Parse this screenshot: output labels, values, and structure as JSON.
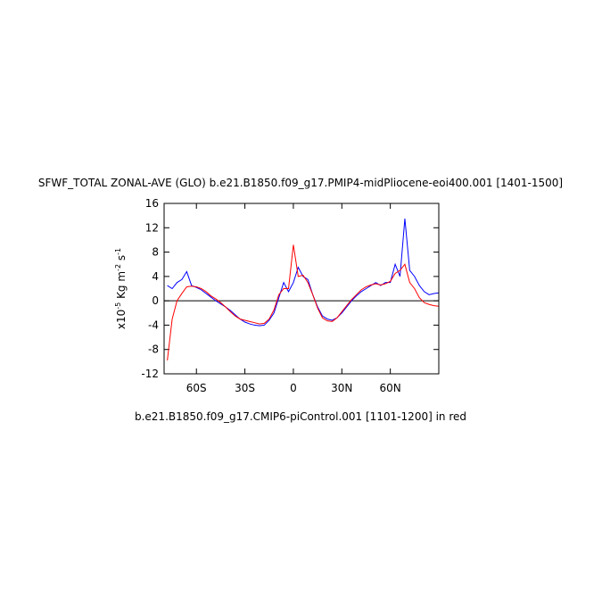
{
  "chart_data": {
    "type": "line",
    "title": "SFWF_TOTAL ZONAL-AVE (GLO) b.e21.B1850.f09_g17.PMIP4-midPliocene-eoi400.001 [1401-1500]",
    "footnote": "b.e21.B1850.f09_g17.CMIP6-piControl.001 [1101-1200] in red",
    "ylabel": [
      {
        "text": "x10"
      },
      {
        "text": "-5",
        "sup": true
      },
      {
        "text": " Kg m"
      },
      {
        "text": "-2",
        "sup": true
      },
      {
        "text": " s"
      },
      {
        "text": "-1",
        "sup": true
      }
    ],
    "x": [
      -78,
      -75,
      -72,
      -69,
      -66,
      -63,
      -60,
      -57,
      -54,
      -51,
      -48,
      -45,
      -42,
      -39,
      -36,
      -33,
      -30,
      -27,
      -24,
      -21,
      -18,
      -15,
      -12,
      -9,
      -6,
      -3,
      0,
      3,
      6,
      9,
      12,
      15,
      18,
      21,
      24,
      27,
      30,
      33,
      36,
      39,
      42,
      45,
      48,
      51,
      54,
      57,
      60,
      63,
      66,
      69,
      72,
      75,
      78,
      81,
      84,
      87,
      90
    ],
    "series": [
      {
        "color": "#0000ff",
        "values": [
          2.5,
          2,
          3,
          3.5,
          4.8,
          2.5,
          2.2,
          1.8,
          1.2,
          0.6,
          0,
          -0.5,
          -1,
          -1.6,
          -2.3,
          -3,
          -3.5,
          -3.8,
          -4,
          -4.1,
          -4,
          -3.2,
          -2,
          0.5,
          3,
          1.5,
          3,
          5.5,
          4,
          3.5,
          1,
          -1,
          -2.5,
          -3,
          -3.2,
          -2.8,
          -2,
          -1,
          0,
          0.8,
          1.5,
          2,
          2.5,
          3,
          2.5,
          3,
          3,
          6,
          4,
          13.5,
          5,
          4,
          2.5,
          1.5,
          1,
          1.2,
          1.3
        ]
      },
      {
        "color": "#ff0000",
        "values": [
          -9.8,
          -3,
          0,
          1.2,
          2.3,
          2.4,
          2.3,
          2,
          1.5,
          0.8,
          0.3,
          -0.3,
          -1,
          -1.8,
          -2.5,
          -3,
          -3.2,
          -3.4,
          -3.6,
          -3.8,
          -3.7,
          -3,
          -1.5,
          1,
          2,
          2,
          9.2,
          4,
          4.2,
          3,
          1,
          -1.2,
          -2.8,
          -3.3,
          -3.4,
          -2.8,
          -1.8,
          -0.8,
          0.2,
          1,
          1.8,
          2.3,
          2.6,
          2.8,
          2.6,
          2.8,
          3.2,
          4.5,
          5,
          6,
          3,
          2,
          0.5,
          -0.3,
          -0.6,
          -0.8,
          -0.9
        ]
      }
    ],
    "xlim": [
      -80,
      90
    ],
    "xticks": [
      {
        "value": -60,
        "label": "60S"
      },
      {
        "value": -30,
        "label": "30S"
      },
      0,
      {
        "value": 30,
        "label": "30N"
      },
      {
        "value": 60,
        "label": "60N"
      }
    ],
    "ylim": [
      -12,
      16
    ],
    "yticks": [
      -12,
      -8,
      -4,
      0,
      4,
      8,
      12,
      16
    ],
    "zero_line": true
  }
}
